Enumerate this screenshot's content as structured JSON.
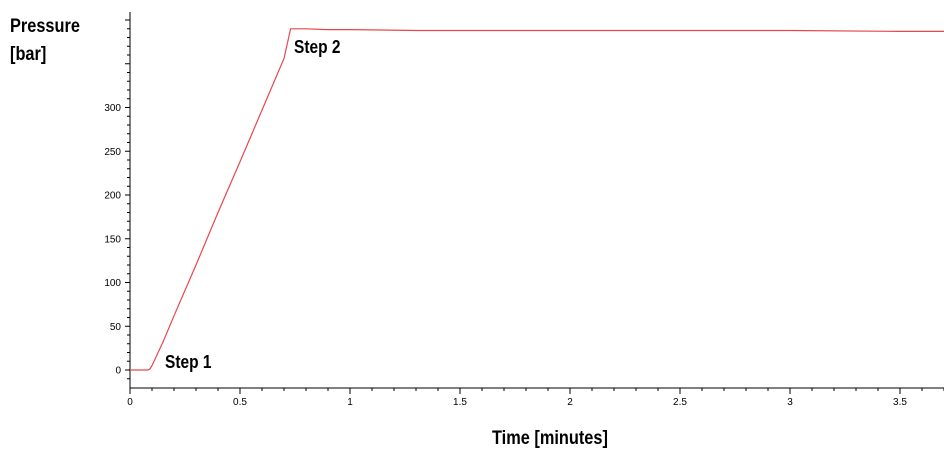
{
  "chart_data": {
    "type": "line",
    "ylabel_lines": [
      "Pressure",
      "[bar]"
    ],
    "xlabel": "Time [minutes]",
    "xlim": [
      0,
      3.7
    ],
    "ylim": [
      -20,
      410
    ],
    "xticks": [
      0,
      0.5,
      1,
      1.5,
      2,
      2.5,
      3,
      3.5
    ],
    "xtick_labels": [
      "0",
      "0.5",
      "1",
      "1.5",
      "2",
      "2.5",
      "3",
      "3.5"
    ],
    "yticks": [
      0,
      50,
      100,
      150,
      200,
      250,
      300
    ],
    "ytick_labels": [
      "0",
      "50",
      "100",
      "150",
      "200",
      "250",
      "300"
    ],
    "grid": false,
    "series": [
      {
        "color": "#e8474a",
        "x": [
          0,
          0.05,
          0.08,
          0.09,
          0.1,
          0.15,
          0.2,
          0.3,
          0.4,
          0.5,
          0.6,
          0.7,
          0.73,
          0.8,
          0.9,
          1.0,
          1.3,
          1.5,
          2.0,
          2.5,
          3.0,
          3.5,
          3.7
        ],
        "y": [
          0,
          0,
          0,
          1,
          5,
          32,
          62,
          120,
          180,
          238,
          297,
          356,
          390,
          390,
          389,
          389,
          388,
          388,
          388,
          388,
          388,
          387,
          387
        ]
      }
    ],
    "annotations": [
      {
        "text": "Step 1",
        "x": 0.1,
        "y": 0
      },
      {
        "text": "Step 2",
        "x": 0.73,
        "y": 390
      }
    ]
  }
}
